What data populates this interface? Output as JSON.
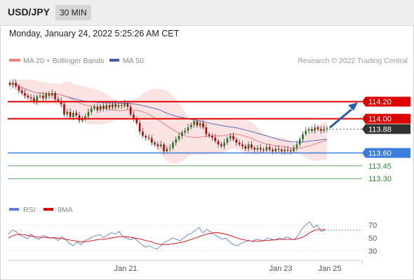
{
  "header": {
    "pair": "USD/JPY",
    "timeframe": "30 MIN"
  },
  "date_line": "Monday, January 24, 2022 5:25:26 AM CET",
  "copyright": "Research © 2022 Trading Central",
  "colors": {
    "up": "#1f7a1f",
    "down": "#c00000",
    "bb_fill": "#fbd7d7",
    "ma20": "#f08080",
    "ma50": "#5a6eb4",
    "resistance": "#e00000",
    "support": "#3b7ddd",
    "target": "#2e8b2e",
    "arrow": "#2a5ea8",
    "price_label": "#333333",
    "rsi": "#5b7fd6",
    "rsi_ma": "#e00000"
  },
  "chart_data": [
    {
      "type": "candlestick",
      "title": "USD/JPY",
      "timeframe": "30 MIN",
      "legend": [
        "MA 20 + Bollinger Bands",
        "MA 50"
      ],
      "x_tick_labels": [
        "Jan 21",
        "Jan 23",
        "Jan 25"
      ],
      "ylim": [
        113.22,
        114.57
      ],
      "levels": [
        {
          "label": "114.20",
          "value": 114.2,
          "kind": "resistance"
        },
        {
          "label": "114.00",
          "value": 114.0,
          "kind": "resistance"
        },
        {
          "label": "113.88",
          "value": 113.88,
          "kind": "last"
        },
        {
          "label": "113.60",
          "value": 113.6,
          "kind": "support"
        },
        {
          "label": "113.45",
          "value": 113.45,
          "kind": "target"
        },
        {
          "label": "113.30",
          "value": 113.3,
          "kind": "target"
        }
      ],
      "close": [
        114.4,
        114.42,
        114.38,
        114.33,
        114.3,
        114.27,
        114.25,
        114.24,
        114.2,
        114.26,
        114.27,
        114.24,
        114.29,
        114.27,
        114.3,
        114.23,
        114.21,
        114.17,
        114.05,
        114.08,
        114.02,
        114.07,
        114.04,
        113.98,
        114.01,
        114.03,
        114.08,
        114.12,
        114.14,
        114.1,
        114.15,
        114.12,
        114.16,
        114.13,
        114.17,
        114.14,
        114.16,
        114.15,
        114.18,
        114.14,
        114.05,
        114.0,
        113.95,
        113.85,
        113.8,
        113.78,
        113.77,
        113.72,
        113.7,
        113.68,
        113.7,
        113.62,
        113.65,
        113.66,
        113.72,
        113.76,
        113.8,
        113.84,
        113.86,
        113.9,
        113.93,
        113.97,
        113.92,
        113.95,
        113.9,
        113.82,
        113.8,
        113.78,
        113.74,
        113.7,
        113.68,
        113.72,
        113.77,
        113.8,
        113.76,
        113.72,
        113.7,
        113.68,
        113.65,
        113.7,
        113.66,
        113.64,
        113.66,
        113.64,
        113.63,
        113.67,
        113.64,
        113.62,
        113.65,
        113.64,
        113.62,
        113.64,
        113.63,
        113.62,
        113.66,
        113.7,
        113.76,
        113.82,
        113.86,
        113.88,
        113.86,
        113.9,
        113.88,
        113.86,
        113.88,
        113.89
      ]
    },
    {
      "type": "line",
      "title": "RSI",
      "legend": [
        "RSI",
        "9MA"
      ],
      "ylim": [
        20,
        80
      ],
      "y_tick_labels": [
        "70",
        "50",
        "30"
      ],
      "rsi": [
        56,
        62,
        60,
        54,
        52,
        49,
        56,
        50,
        48,
        54,
        52,
        50,
        51,
        46,
        52,
        48,
        42,
        38,
        44,
        40,
        46,
        48,
        52,
        54,
        55,
        51,
        55,
        58,
        56,
        60,
        52,
        50,
        47,
        50,
        45,
        40,
        36,
        38,
        35,
        33,
        38,
        44,
        46,
        50,
        48,
        46,
        50,
        55,
        57,
        62,
        66,
        58,
        63,
        60,
        55,
        52,
        48,
        50,
        44,
        40,
        38,
        42,
        44,
        46,
        45,
        48,
        47,
        46,
        50,
        48,
        47,
        50,
        48,
        52,
        49,
        47,
        54,
        64,
        70,
        75,
        66,
        70,
        60,
        62
      ],
      "rsi_ma": [
        50,
        53,
        55,
        56,
        55,
        54,
        53,
        52,
        51,
        51,
        51,
        50,
        50,
        50,
        49,
        48,
        47,
        46,
        45,
        44,
        44,
        45,
        46,
        47,
        48,
        48,
        49,
        50,
        51,
        52,
        52,
        52,
        51,
        50,
        49,
        48,
        46,
        45,
        43,
        41,
        40,
        40,
        40,
        41,
        42,
        43,
        44,
        46,
        48,
        50,
        52,
        54,
        56,
        57,
        58,
        58,
        57,
        56,
        54,
        52,
        50,
        48,
        47,
        46,
        45,
        45,
        45,
        46,
        46,
        47,
        47,
        48,
        48,
        48,
        48,
        48,
        49,
        51,
        54,
        58,
        61,
        63,
        63,
        63
      ]
    }
  ]
}
